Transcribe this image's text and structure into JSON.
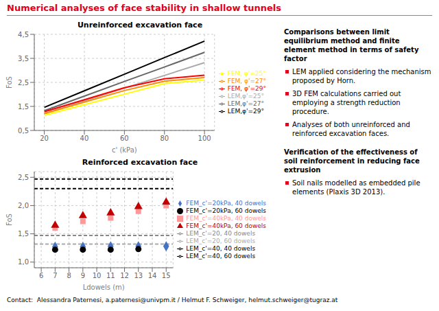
{
  "chart_data": [
    {
      "type": "line",
      "title": "Unreinforced excavation face",
      "x_label": "c' (kPa)",
      "y_label": "FoS",
      "xlim": [
        15,
        105
      ],
      "ylim": [
        0.5,
        4.5
      ],
      "xticks": [
        20,
        40,
        60,
        80,
        100
      ],
      "yticks": [
        {
          "value": 0.5,
          "label": "0,5"
        },
        {
          "value": 1.5,
          "label": "1,5"
        },
        {
          "value": 2.5,
          "label": "2,5"
        },
        {
          "value": 3.5,
          "label": "3,5"
        },
        {
          "value": 4.5,
          "label": "4,5"
        }
      ],
      "grid": true,
      "legend": "right",
      "x": [
        20,
        40,
        60,
        80,
        100
      ],
      "series": [
        {
          "name": "LEM,φ'=25°",
          "color": "#aaaaaa",
          "values": [
            1.2,
            1.73,
            2.26,
            2.79,
            3.32
          ]
        },
        {
          "name": "LEM,φ'=27°",
          "color": "#666666",
          "values": [
            1.32,
            1.93,
            2.54,
            3.14,
            3.75
          ]
        },
        {
          "name": "LEM,φ'=29°",
          "color": "#000000",
          "values": [
            1.46,
            2.15,
            2.84,
            3.53,
            4.22
          ]
        },
        {
          "name": "FEM, φ'=25°",
          "color": "#ffff00",
          "values": [
            1.13,
            1.57,
            2.01,
            2.45,
            2.6
          ]
        },
        {
          "name": "FEM, φ'=27°",
          "color": "#ff8c00",
          "values": [
            1.2,
            1.68,
            2.16,
            2.55,
            2.7
          ]
        },
        {
          "name": "FEM, φ'=29°",
          "color": "#ff0000",
          "values": [
            1.28,
            1.78,
            2.28,
            2.65,
            2.8
          ]
        }
      ],
      "annotations": [
        "Numerical analyses of face stability in shallow tunnels",
        "Comparisons between limit equilibrium method and finite element method in terms of safety factor",
        "LEM applied considering the mechanism proposed by Horn.",
        "3D FEM calculations carried out employing a strength reduction procedure.",
        "Analyses of both unreinforced and reinforced excavation faces.",
        "Verification of the effectiveness of soil reinforcement in reducing face extrusion",
        "Soil nails modelled as embedded pile elements (Plaxis 3D 2013).",
        "Contact:  Alessandra Paternesi, a.paternesi@univpm.it / Helmut F. Schweiger, helmut.schweiger@tugraz.at"
      ]
    },
    {
      "type": "line",
      "title": "Reinforced excavation face",
      "x_label": "Ldowels (m)",
      "y_label": "FoS",
      "xlim": [
        5.5,
        15.5
      ],
      "ylim": [
        0.9,
        2.6
      ],
      "xticks": [
        6,
        7,
        8,
        9,
        10,
        11,
        12,
        13,
        14,
        15
      ],
      "yticks": [
        {
          "value": 1.0,
          "label": "1,0"
        },
        {
          "value": 1.5,
          "label": "1,5"
        },
        {
          "value": 2.0,
          "label": "2,0"
        },
        {
          "value": 2.5,
          "label": "2,5"
        }
      ],
      "grid": true,
      "legend": "right",
      "series": [
        {
          "name": "FEM_c'=20kPa, 40 dowels",
          "type": "scatter",
          "marker": "diamond",
          "color": "#4472c4",
          "x": [
            7,
            9,
            11,
            13,
            15
          ],
          "values": [
            1.27,
            1.27,
            1.28,
            1.28,
            1.28
          ]
        },
        {
          "name": "FEM_c'=20kPa, 60 dowels",
          "type": "scatter",
          "marker": "circle",
          "color": "#000000",
          "x": [
            7,
            9,
            11,
            13
          ],
          "values": [
            1.22,
            1.22,
            1.22,
            1.23
          ]
        },
        {
          "name": "FEM_c'=40kPa, 40 dowels",
          "type": "scatter",
          "marker": "square",
          "color": "#ff9999",
          "x": [
            7,
            9,
            11,
            13,
            15
          ],
          "values": [
            1.6,
            1.72,
            1.78,
            1.9,
            2.0
          ]
        },
        {
          "name": "FEM_c'=40kPa, 60 dowels",
          "type": "scatter",
          "marker": "triangle",
          "color": "#c00000",
          "x": [
            7,
            9,
            11,
            13,
            15
          ],
          "values": [
            1.65,
            1.82,
            1.87,
            1.98,
            2.06
          ]
        },
        {
          "name": "LEM_c'=20, 40 dowels",
          "type": "line",
          "line_style": "dashed",
          "color": "#888888",
          "x": [
            5.5,
            15.5
          ],
          "values": [
            1.47,
            1.47
          ]
        },
        {
          "name": "LEM_c'=20, 60 dowels",
          "type": "line",
          "line_style": "dashed",
          "color": "#aaaaaa",
          "x": [
            5.5,
            15.5
          ],
          "values": [
            1.32,
            1.32
          ]
        },
        {
          "name": "LEM_c'=40, 40 dowels",
          "type": "line",
          "line_style": "dashed",
          "color": "#000000",
          "x": [
            5.5,
            15.5
          ],
          "values": [
            2.47,
            2.47
          ]
        },
        {
          "name": "LEM_c'=40, 60 dowels",
          "type": "line",
          "line_style": "dashed",
          "color": "#000000",
          "x": [
            5.5,
            15.5
          ],
          "values": [
            2.3,
            2.3
          ]
        }
      ]
    }
  ]
}
